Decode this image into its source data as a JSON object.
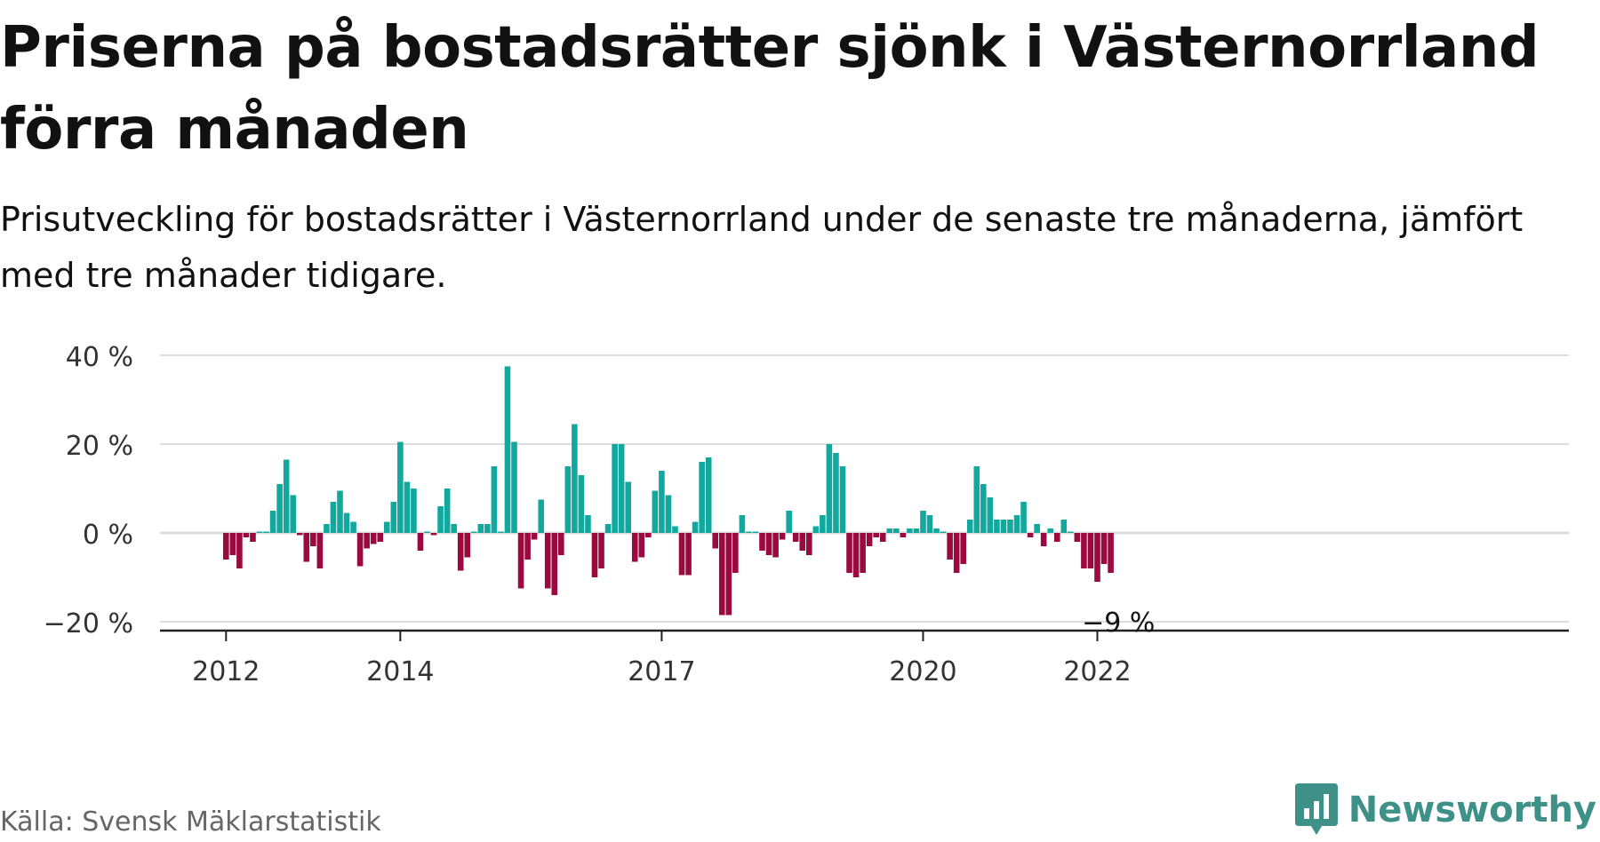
{
  "title": "Priserna på bostadsrätter sjönk i Västernorrland förra månaden",
  "subtitle": "Prisutveckling för bostadsrätter i Västernorrland under de senaste tre månaderna, jämfört med tre månader tidigare.",
  "source": "Källa: Svensk Mäklarstatistik",
  "brand": "Newsworthy",
  "colors": {
    "positive": "#13a89e",
    "negative": "#9b0a3e",
    "grid": "#dddddd",
    "axis": "#222222",
    "brand": "#3e9188"
  },
  "chart_data": {
    "type": "bar",
    "ylim": [
      -20,
      40
    ],
    "y_ticks": [
      "−20 %",
      "0 %",
      "20 %",
      "40 %"
    ],
    "x_ticks": [
      "2012",
      "2014",
      "2017",
      "2020",
      "2022"
    ],
    "last_label": "−9 %",
    "grid": true,
    "values": [
      -6,
      -5,
      -8,
      -1,
      -2,
      0.3,
      0.3,
      5,
      11,
      16.5,
      8.5,
      -0.5,
      -6.5,
      -3,
      -8,
      2,
      7,
      9.5,
      4.5,
      2.5,
      -7.5,
      -3.5,
      -2.5,
      -2,
      2.5,
      7,
      20.5,
      11.5,
      10,
      -4,
      0.3,
      -0.5,
      6,
      10,
      2,
      -8.5,
      -5.5,
      0.3,
      2,
      2,
      15,
      0.3,
      37.5,
      20.5,
      -12.5,
      -6,
      -1.5,
      7.5,
      -12.5,
      -14,
      -5,
      15,
      24.5,
      13,
      4,
      -10,
      -8,
      2,
      20,
      20,
      11.5,
      -6.5,
      -5.5,
      -1,
      9.5,
      14,
      8.5,
      1.5,
      -9.5,
      -9.5,
      2.5,
      16,
      17,
      -3.5,
      -18.5,
      -18.5,
      -9,
      4,
      0.3,
      0.3,
      -4,
      -5,
      -5.5,
      -1.5,
      5,
      -2,
      -4,
      -5,
      1.5,
      4,
      20,
      18,
      15,
      -9,
      -10,
      -9,
      -3,
      -1,
      -2,
      1,
      1,
      -1,
      1,
      1,
      5,
      4,
      1,
      0.3,
      -6,
      -9,
      -7,
      3,
      15,
      11,
      8,
      3,
      3,
      3,
      4,
      7,
      -1,
      2,
      -3,
      1,
      -2,
      3,
      0.3,
      -2,
      -8,
      -8,
      -11,
      -7,
      -9
    ]
  }
}
